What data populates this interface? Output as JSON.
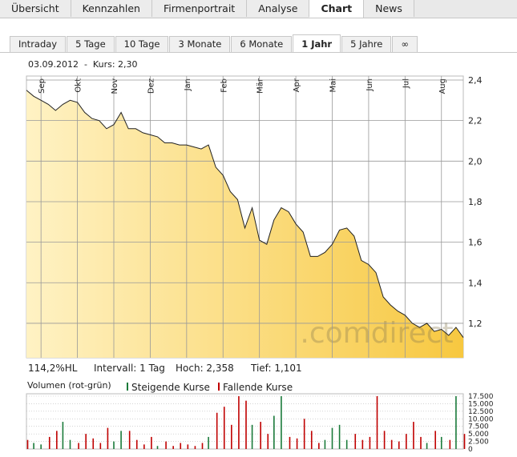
{
  "tabs": [
    "Übersicht",
    "Kennzahlen",
    "Firmenportrait",
    "Analyse",
    "Chart",
    "News"
  ],
  "active_tab": 4,
  "period_tabs": [
    "Intraday",
    "5 Tage",
    "10 Tage",
    "3 Monate",
    "6 Monate",
    "1 Jahr",
    "5 Jahre",
    "∞"
  ],
  "active_period": 5,
  "header": "03.09.2012  -  Kurs: 2,30",
  "stats": [
    "114,2%HL",
    "Intervall: 1 Tag",
    "Hoch: 2,358",
    "Tief: 1,101"
  ],
  "volume_title": "Volumen (rot-grün)",
  "chart_data": [
    {
      "type": "area",
      "watermark": ".comdirect",
      "color": "#222222",
      "grid": true,
      "xlim": [
        0,
        60
      ],
      "xticks": [
        {
          "value": 2,
          "label": "Sep"
        },
        {
          "value": 7,
          "label": "Okt"
        },
        {
          "value": 12,
          "label": "Nov"
        },
        {
          "value": 17,
          "label": "Dez"
        },
        {
          "value": 22,
          "label": "Jan"
        },
        {
          "value": 27,
          "label": "Feb"
        },
        {
          "value": 32,
          "label": "Mär"
        },
        {
          "value": 37,
          "label": "Apr"
        },
        {
          "value": 42,
          "label": "Mai"
        },
        {
          "value": 47,
          "label": "Jun"
        },
        {
          "value": 52,
          "label": "Jul"
        },
        {
          "value": 57,
          "label": "Aug"
        }
      ],
      "ylim": [
        1.03,
        2.4
      ],
      "yticks": [
        {
          "value": 1.2,
          "label": "1,2"
        },
        {
          "value": 1.4,
          "label": "1,4"
        },
        {
          "value": 1.6,
          "label": "1,6"
        },
        {
          "value": 1.8,
          "label": "1,8"
        },
        {
          "value": 2.0,
          "label": "2,0"
        },
        {
          "value": 2.2,
          "label": "2,2"
        },
        {
          "value": 2.4,
          "label": "2,4"
        }
      ],
      "values": [
        2.35,
        2.32,
        2.3,
        2.28,
        2.25,
        2.28,
        2.3,
        2.29,
        2.24,
        2.21,
        2.2,
        2.16,
        2.18,
        2.24,
        2.16,
        2.16,
        2.14,
        2.13,
        2.12,
        2.09,
        2.09,
        2.08,
        2.08,
        2.07,
        2.06,
        2.08,
        1.97,
        1.93,
        1.85,
        1.81,
        1.67,
        1.77,
        1.61,
        1.59,
        1.71,
        1.77,
        1.75,
        1.69,
        1.65,
        1.53,
        1.53,
        1.55,
        1.59,
        1.66,
        1.67,
        1.63,
        1.51,
        1.49,
        1.45,
        1.33,
        1.29,
        1.26,
        1.24,
        1.2,
        1.18,
        1.2,
        1.16,
        1.17,
        1.14,
        1.18,
        1.13
      ]
    },
    {
      "type": "bar",
      "xlim": [
        0,
        60
      ],
      "ylim": [
        0,
        17500
      ],
      "grid": true,
      "yticks": [
        0,
        {
          "value": 2500,
          "label": "2.500"
        },
        {
          "value": 5000,
          "label": "5.000"
        },
        {
          "value": 7500,
          "label": "7.500"
        },
        {
          "value": 10000,
          "label": "10.000"
        },
        {
          "value": 12500,
          "label": "12.500"
        },
        {
          "value": 15000,
          "label": "15.000"
        },
        {
          "value": 17500,
          "label": "17.500"
        }
      ],
      "series": [
        {
          "name": "Steigende Kurse",
          "color": "#1a7a3a",
          "values": [
            null,
            2000,
            1500,
            null,
            null,
            9000,
            3000,
            null,
            null,
            null,
            null,
            null,
            2500,
            6000,
            null,
            null,
            null,
            null,
            1000,
            null,
            null,
            null,
            null,
            null,
            null,
            4000,
            null,
            null,
            null,
            null,
            null,
            8000,
            null,
            null,
            11000,
            17500,
            null,
            null,
            null,
            null,
            null,
            3000,
            7000,
            8000,
            3000,
            null,
            null,
            null,
            null,
            null,
            null,
            null,
            null,
            null,
            null,
            2000,
            null,
            4000,
            null,
            17500,
            null
          ]
        },
        {
          "name": "Fallende Kurse",
          "color": "#c00000",
          "values": [
            3000,
            null,
            null,
            4000,
            6000,
            null,
            null,
            2000,
            5000,
            3500,
            2000,
            7000,
            null,
            null,
            6000,
            3000,
            1500,
            4000,
            null,
            2500,
            1000,
            2000,
            1500,
            1000,
            2000,
            null,
            12000,
            14000,
            8000,
            17500,
            16000,
            null,
            9000,
            5000,
            null,
            null,
            4000,
            3500,
            10000,
            6000,
            2000,
            null,
            null,
            null,
            null,
            5000,
            3000,
            4000,
            17500,
            6000,
            3000,
            2500,
            5000,
            9000,
            4000,
            null,
            6000,
            null,
            3000,
            null,
            5000
          ]
        }
      ]
    }
  ]
}
